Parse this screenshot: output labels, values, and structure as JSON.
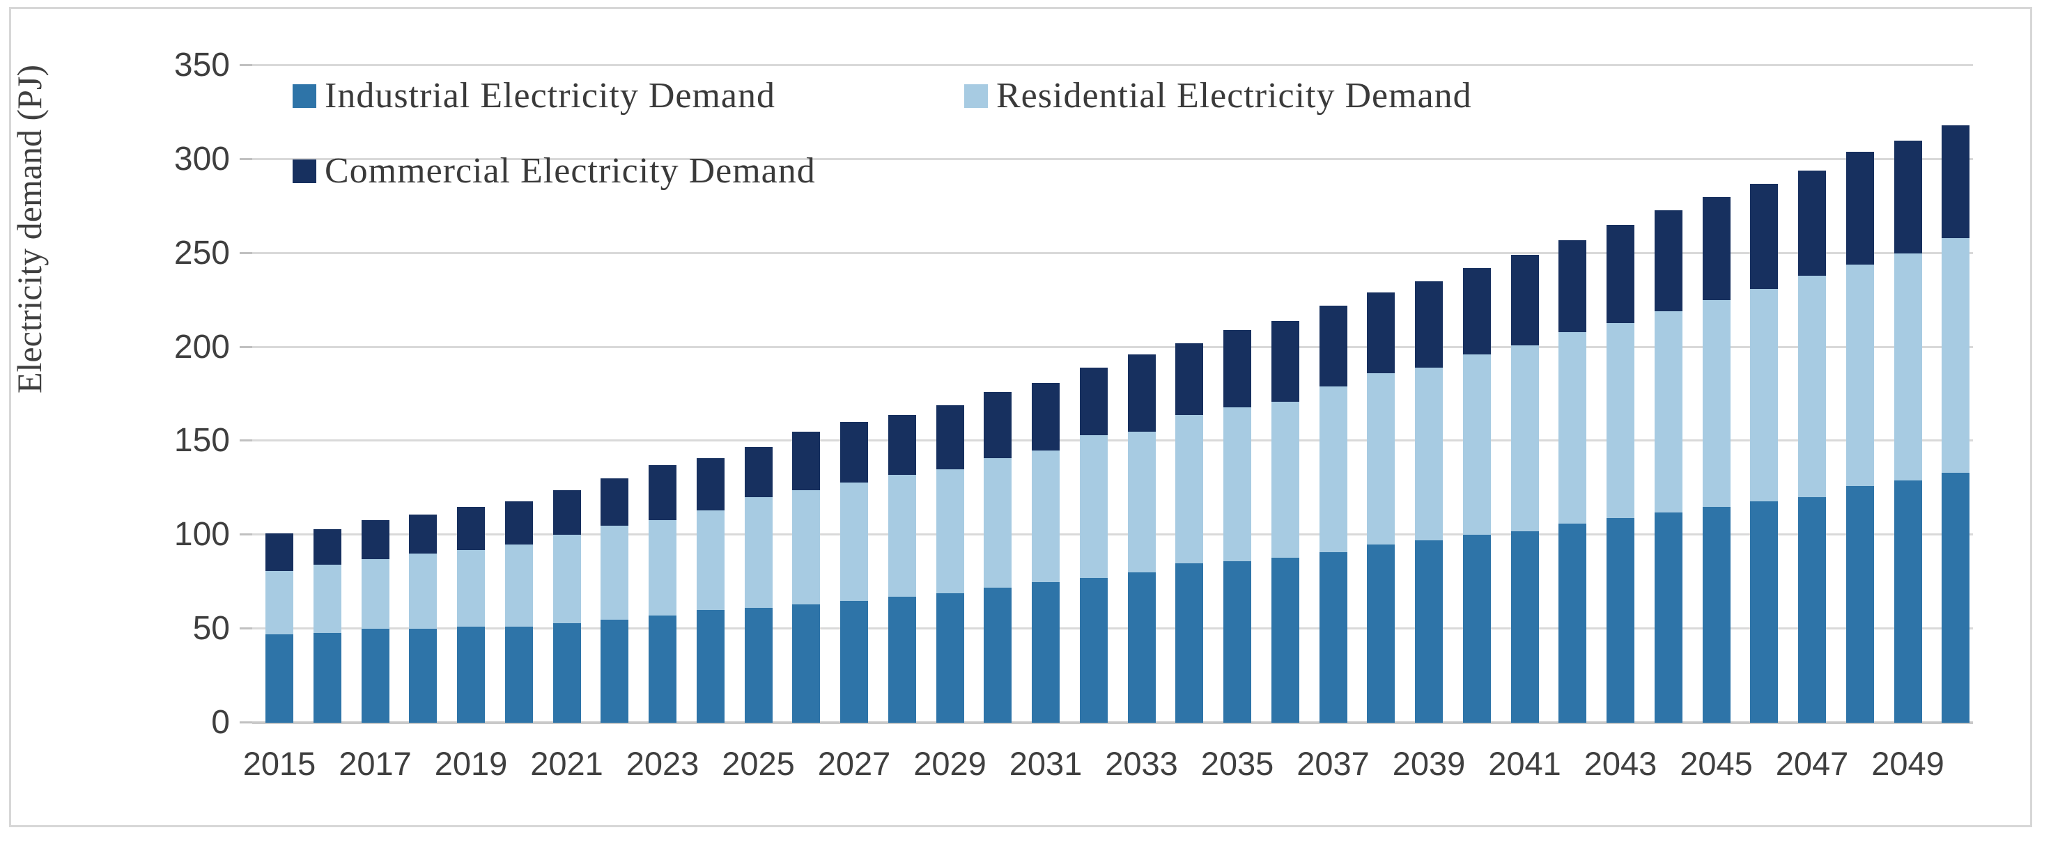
{
  "y_axis": {
    "title": "Electricity demand (PJ)"
  },
  "chart_data": {
    "type": "bar",
    "stacked": true,
    "title": "",
    "xlabel": "",
    "ylabel": "Electricity demand (PJ)",
    "ylim": [
      0,
      350
    ],
    "yticks": [
      0,
      50,
      100,
      150,
      200,
      250,
      300,
      350
    ],
    "grid": true,
    "legend_position": "top-left",
    "x": [
      2015,
      2016,
      2017,
      2018,
      2019,
      2020,
      2021,
      2022,
      2023,
      2024,
      2025,
      2026,
      2027,
      2028,
      2029,
      2030,
      2031,
      2032,
      2033,
      2034,
      2035,
      2036,
      2037,
      2038,
      2039,
      2040,
      2041,
      2042,
      2043,
      2044,
      2045,
      2046,
      2047,
      2048,
      2049,
      2050
    ],
    "xtick_labels": [
      "2015",
      "2017",
      "2019",
      "2021",
      "2023",
      "2025",
      "2027",
      "2029",
      "2031",
      "2033",
      "2035",
      "2037",
      "2039",
      "2041",
      "2043",
      "2045",
      "2047",
      "2049"
    ],
    "series": [
      {
        "name": "Industrial Electricity Demand",
        "color": "#2e74a8",
        "values": [
          47,
          48,
          50,
          50,
          51,
          51,
          53,
          55,
          57,
          60,
          61,
          63,
          65,
          67,
          69,
          72,
          75,
          77,
          80,
          85,
          86,
          88,
          91,
          95,
          97,
          100,
          102,
          106,
          109,
          112,
          115,
          118,
          120,
          126,
          129,
          133
        ]
      },
      {
        "name": "Residential Electricity Demand",
        "color": "#a7cbe2",
        "values": [
          34,
          36,
          37,
          40,
          41,
          44,
          47,
          50,
          51,
          53,
          59,
          61,
          63,
          65,
          66,
          69,
          70,
          76,
          75,
          79,
          82,
          83,
          88,
          91,
          92,
          96,
          99,
          102,
          104,
          107,
          110,
          113,
          118,
          118,
          121,
          125
        ]
      },
      {
        "name": "Commercial Electricity Demand",
        "color": "#17305f",
        "values": [
          20,
          19,
          21,
          21,
          23,
          23,
          24,
          25,
          29,
          28,
          27,
          31,
          32,
          32,
          34,
          35,
          36,
          36,
          41,
          38,
          41,
          43,
          43,
          43,
          46,
          46,
          48,
          49,
          52,
          54,
          55,
          56,
          56,
          60,
          60,
          60
        ]
      }
    ]
  }
}
